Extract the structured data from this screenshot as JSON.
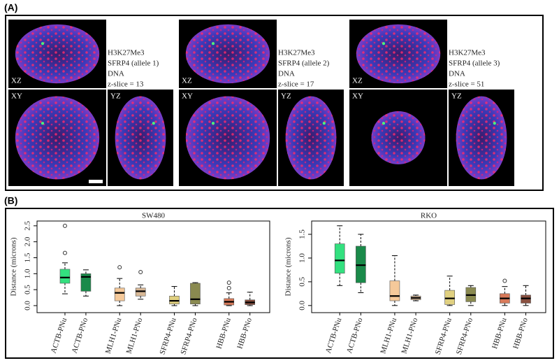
{
  "panel_labels": [
    "(A)",
    "(B)"
  ],
  "panel_a": {
    "cells": [
      {
        "views": [
          "XZ",
          "XY",
          "YZ"
        ],
        "legend": [
          {
            "text": "H3K27Me3",
            "color": "#ff2020"
          },
          {
            "text": "SFRP4 (allele 1)",
            "color": "#30d030"
          },
          {
            "text": "DNA",
            "color": "#1010ff"
          },
          {
            "text": "z-slice = 13",
            "color": "#222222"
          }
        ]
      },
      {
        "views": [
          "XZ",
          "XY",
          "YZ"
        ],
        "legend": [
          {
            "text": "H3K27Me3",
            "color": "#ff2020"
          },
          {
            "text": "SFRP4 (allele 2)",
            "color": "#30d030"
          },
          {
            "text": "DNA",
            "color": "#1010ff"
          },
          {
            "text": "z-slice = 17",
            "color": "#222222"
          }
        ]
      },
      {
        "views": [
          "XZ",
          "XY",
          "YZ"
        ],
        "legend": [
          {
            "text": "H3K27Me3",
            "color": "#ff2020"
          },
          {
            "text": "SFRP4 (allele 3)",
            "color": "#30d030"
          },
          {
            "text": "DNA",
            "color": "#1010ff"
          },
          {
            "text": "z-slice = 51",
            "color": "#222222"
          }
        ]
      }
    ]
  },
  "chart_data": [
    {
      "type": "box",
      "title": "SW480",
      "y_label": "Distance (microns)",
      "categories": [
        "ACTB-PNu",
        "ACTB-PNo",
        "MLH1-PNu",
        "MLH1-PNo",
        "SFRP4-PNu",
        "SFRP4-PNo",
        "HBB-PNu",
        "HBB-PNo"
      ],
      "colors": [
        "#33e07f",
        "#1a8a4a",
        "#f5c99a",
        "#d8b896",
        "#e0d080",
        "#8a8a50",
        "#d87a5a",
        "#8a5040"
      ],
      "whisker_low": [
        0.37,
        0.3,
        0.0,
        0.2,
        0.0,
        0.0,
        0.0,
        0.0
      ],
      "q1": [
        0.7,
        0.45,
        0.15,
        0.3,
        0.05,
        0.05,
        0.02,
        0.03
      ],
      "median": [
        0.88,
        0.9,
        0.4,
        0.45,
        0.15,
        0.2,
        0.12,
        0.1
      ],
      "q3": [
        1.14,
        1.0,
        0.55,
        0.55,
        0.3,
        0.7,
        0.22,
        0.18
      ],
      "whisker_high": [
        1.34,
        1.12,
        0.85,
        0.65,
        0.6,
        0.72,
        0.4,
        0.42
      ],
      "outliers": [
        [
          2.5,
          1.65
        ],
        [],
        [
          1.2
        ],
        [
          1.05
        ],
        [],
        [],
        [
          0.55,
          0.72
        ],
        []
      ],
      "ylim": [
        -0.22,
        2.65
      ],
      "yticks": [
        {
          "value": 0,
          "label": "0.0"
        },
        0.5,
        {
          "value": 1,
          "label": "1.0"
        },
        1.5,
        {
          "value": 2,
          "label": "2.0"
        },
        2.5
      ]
    },
    {
      "type": "box",
      "title": "RKO",
      "y_label": "Distance (microns)",
      "categories": [
        "ACTB-PNu",
        "ACTB-PNo",
        "MLH1-PNu",
        "MLH1-PNo",
        "SFRP4-PNu",
        "SFRP4-PNo",
        "HBB-PNu",
        "HBB-PNo"
      ],
      "colors": [
        "#33e07f",
        "#1a8a4a",
        "#f5c99a",
        "#d8b896",
        "#e0d080",
        "#8a8a50",
        "#d87a5a",
        "#8a5040"
      ],
      "whisker_low": [
        0.42,
        0.27,
        0.0,
        0.1,
        0.0,
        0.0,
        0.0,
        0.0
      ],
      "q1": [
        0.68,
        0.48,
        0.1,
        0.12,
        0.02,
        0.08,
        0.05,
        0.05
      ],
      "median": [
        0.95,
        0.85,
        0.2,
        0.16,
        0.15,
        0.22,
        0.15,
        0.15
      ],
      "q3": [
        1.3,
        1.25,
        0.52,
        0.2,
        0.32,
        0.38,
        0.25,
        0.22
      ],
      "whisker_high": [
        1.68,
        1.5,
        1.05,
        0.22,
        0.62,
        0.42,
        0.4,
        0.42
      ],
      "outliers": [
        [],
        [],
        [],
        [],
        [],
        [],
        [
          0.52
        ],
        []
      ],
      "ylim": [
        -0.15,
        1.78
      ],
      "yticks": [
        {
          "value": 0,
          "label": "0.0"
        },
        0.5,
        {
          "value": 1,
          "label": "1.0"
        },
        1.5
      ]
    }
  ]
}
